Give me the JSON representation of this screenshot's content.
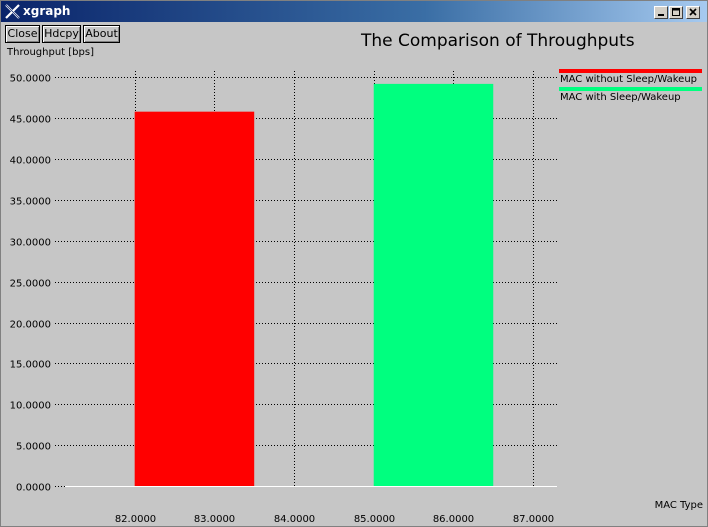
{
  "window": {
    "title": "xgraph"
  },
  "toolbar": {
    "close_label": "Close",
    "hdcpy_label": "Hdcpy",
    "about_label": "About"
  },
  "colors": {
    "background": "#c6c6c6",
    "grid": "#000000",
    "series": [
      "#ff0000",
      "#00ff7f"
    ]
  },
  "chart_data": {
    "type": "bar",
    "title": "The Comparison of Throughputs",
    "xlabel": "MAC Type",
    "ylabel": "Throughput [bps]",
    "xlim": [
      81.0,
      87.3
    ],
    "ylim": [
      0,
      52
    ],
    "grid": true,
    "legend_position": "top-right",
    "x_ticks": [
      "82.0000",
      "83.0000",
      "84.0000",
      "85.0000",
      "86.0000",
      "87.0000"
    ],
    "x_tick_values": [
      82,
      83,
      84,
      85,
      86,
      87
    ],
    "y_ticks": [
      "0.0000",
      "5.0000",
      "10.0000",
      "15.0000",
      "20.0000",
      "25.0000",
      "30.0000",
      "35.0000",
      "40.0000",
      "45.0000",
      "50.0000"
    ],
    "y_tick_values": [
      0,
      5,
      10,
      15,
      20,
      25,
      30,
      35,
      40,
      45,
      50
    ],
    "series": [
      {
        "name": "MAC without Sleep/Wakeup",
        "x_start": 82.0,
        "x_end": 83.5,
        "value": 45.8,
        "color": "#ff0000"
      },
      {
        "name": "MAC with Sleep/Wakeup",
        "x_start": 85.0,
        "x_end": 86.5,
        "value": 49.2,
        "color": "#00ff7f"
      }
    ]
  }
}
